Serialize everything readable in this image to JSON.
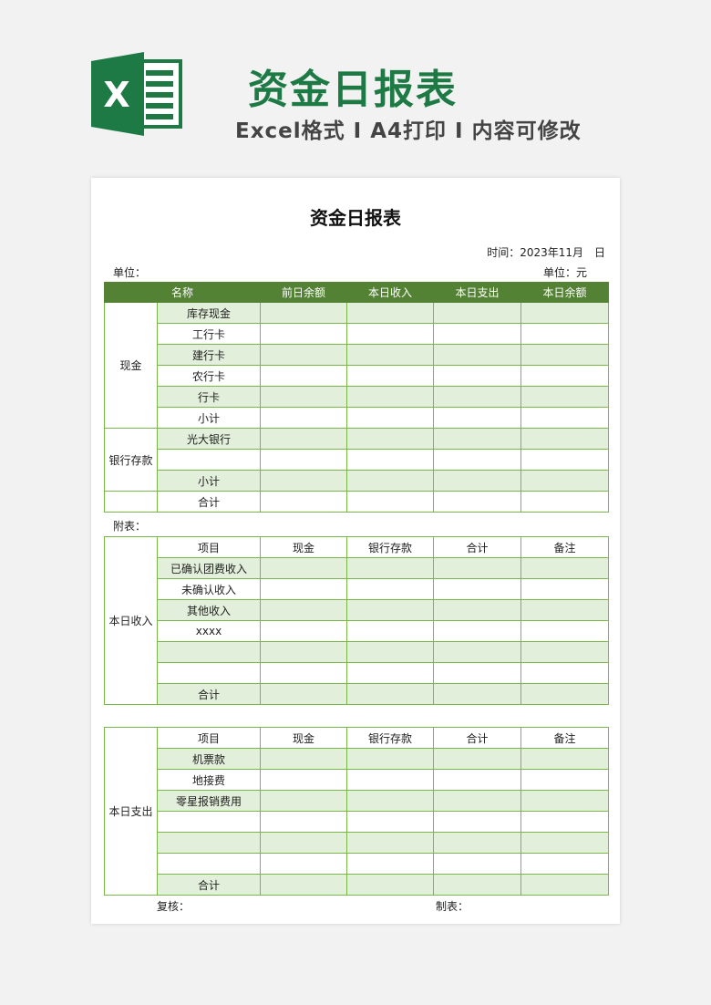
{
  "banner": {
    "title": "资金日报表",
    "subtitle": "Excel格式 I A4打印 I 内容可修改",
    "logo_letter": "X"
  },
  "colors": {
    "brand": "#1e7a45",
    "header": "#548235",
    "border": "#7ab648",
    "stripe": "#e2efda"
  },
  "sheet": {
    "title": "资金日报表",
    "time": "时间：2023年11月　日",
    "unit_left": "单位：",
    "unit_right": "单位：元",
    "table1": {
      "headers": [
        "名称",
        "前日余额",
        "本日收入",
        "本日支出",
        "本日余额"
      ],
      "groups": [
        "现金",
        "银行存款"
      ],
      "rows": [
        "库存现金",
        "工行卡",
        "建行卡",
        "农行卡",
        "行卡",
        "小计",
        "光大银行",
        "",
        "小计",
        "合计"
      ]
    },
    "appendix": "附表：",
    "table2": {
      "group": "本日收入",
      "headers": [
        "项目",
        "现金",
        "银行存款",
        "合计",
        "备注"
      ],
      "rows": [
        "已确认团费收入",
        "未确认收入",
        "其他收入",
        "xxxx",
        "",
        "",
        "合计"
      ]
    },
    "table3": {
      "group": "本日支出",
      "headers": [
        "项目",
        "现金",
        "银行存款",
        "合计",
        "备注"
      ],
      "rows": [
        "机票款",
        "地接费",
        "零星报销费用",
        "",
        "",
        "",
        "合计"
      ]
    },
    "review": "复核：",
    "maker": "制表："
  }
}
